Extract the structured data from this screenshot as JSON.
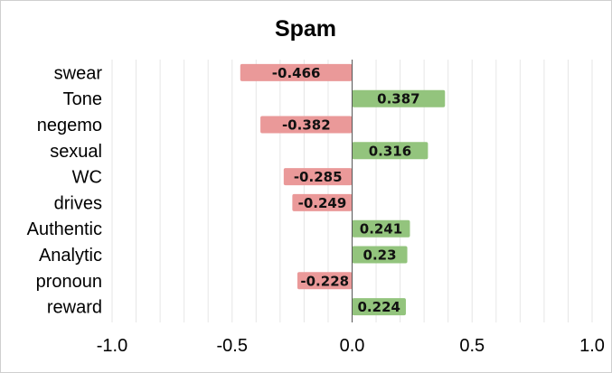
{
  "chart_data": {
    "type": "bar",
    "orientation": "horizontal",
    "title": "Spam",
    "xlabel": "",
    "ylabel": "",
    "xlim": [
      -1.0,
      1.0
    ],
    "x_ticks": [
      -1.0,
      -0.5,
      0.0,
      0.5,
      1.0
    ],
    "x_tick_labels": [
      "-1.0",
      "-0.5",
      "0.0",
      "0.5",
      "1.0"
    ],
    "categories": [
      "swear",
      "Tone",
      "negemo",
      "sexual",
      "WC",
      "drives",
      "Authentic",
      "Analytic",
      "pronoun",
      "reward"
    ],
    "values": [
      -0.466,
      0.387,
      -0.382,
      0.316,
      -0.285,
      -0.249,
      0.241,
      0.23,
      -0.228,
      0.224
    ],
    "data_labels": [
      "-0.466",
      "0.387",
      "-0.382",
      "0.316",
      "-0.285",
      "-0.249",
      "0.241",
      "0.23",
      "-0.228",
      "0.224"
    ],
    "grid": true,
    "legend": "none",
    "colors": {
      "positive": "#93c47d",
      "negative": "#ea9999",
      "grid": "#e6e6e6",
      "zero_line": "#555555"
    }
  }
}
